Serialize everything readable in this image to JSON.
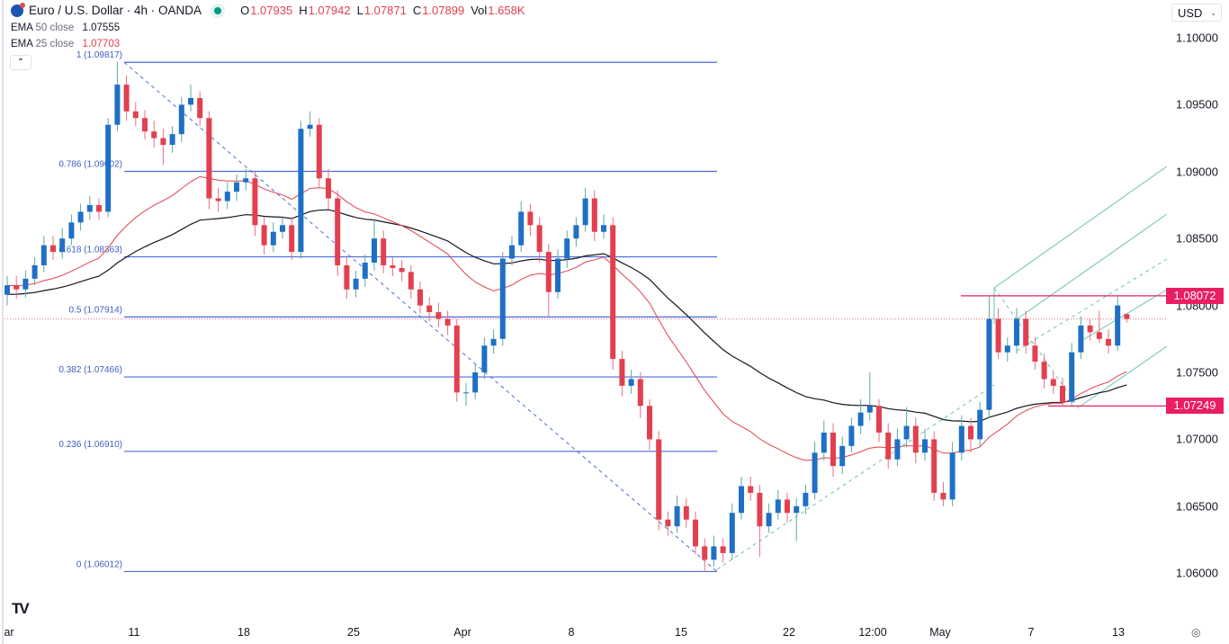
{
  "header": {
    "title": "Euro / U.S. Dollar · 4h · OANDA",
    "market_status_color": "#089981",
    "ohlc": {
      "o_label": "O",
      "o": "1.07935",
      "h_label": "H",
      "h": "1.07942",
      "l_label": "L",
      "l": "1.07871",
      "c_label": "C",
      "c": "1.07899",
      "vol_label": "Vol",
      "vol": "1.658K"
    }
  },
  "indicators": [
    {
      "name": "EMA",
      "params": "50 close",
      "value": "1.07555",
      "color": "#131722",
      "period": 50
    },
    {
      "name": "EMA",
      "params": "25 close",
      "value": "1.07703",
      "color": "#e2404f",
      "period": 25
    }
  ],
  "currency_selector": "USD",
  "colors": {
    "up": "#1f6fc5",
    "down": "#e2404f",
    "up_wick": "#5aa9a5",
    "down_wick": "#e9707e",
    "fib": "#4a6cd4",
    "pitchfork": "#6cc3ad",
    "level": "#e91e63"
  },
  "chart_data": {
    "type": "candlestick",
    "title": "",
    "ylim": [
      1.0575,
      1.1015
    ],
    "grid": false,
    "y_ticks": [
      "1.10000",
      "1.09500",
      "1.09000",
      "1.08500",
      "1.08000",
      "1.07500",
      "1.07000",
      "1.06500",
      "1.06000"
    ],
    "x_ticks": [
      "ar",
      "11",
      "18",
      "25",
      "Apr",
      "8",
      "15",
      "22",
      "12:00",
      "May",
      "7",
      "13"
    ],
    "current_price": 1.07899,
    "ohlc": [
      [
        1.0808,
        1.0822,
        1.08,
        1.0815
      ],
      [
        1.0815,
        1.0822,
        1.0805,
        1.0812
      ],
      [
        1.0812,
        1.0826,
        1.0806,
        1.082
      ],
      [
        1.082,
        1.0836,
        1.0815,
        1.083
      ],
      [
        1.083,
        1.0852,
        1.0825,
        1.0845
      ],
      [
        1.0845,
        1.0852,
        1.0834,
        1.084
      ],
      [
        1.084,
        1.0858,
        1.0835,
        1.085
      ],
      [
        1.085,
        1.0868,
        1.0845,
        1.0862
      ],
      [
        1.0862,
        1.0876,
        1.0856,
        1.087
      ],
      [
        1.087,
        1.0882,
        1.0864,
        1.0875
      ],
      [
        1.0875,
        1.088,
        1.0864,
        1.087
      ],
      [
        1.087,
        1.094,
        1.0866,
        1.0935
      ],
      [
        1.0935,
        1.0982,
        1.093,
        1.0965
      ],
      [
        1.0965,
        1.0972,
        1.0938,
        1.0945
      ],
      [
        1.0945,
        1.0952,
        1.0934,
        1.094
      ],
      [
        1.094,
        1.0946,
        1.0924,
        1.093
      ],
      [
        1.093,
        1.0938,
        1.0918,
        1.0925
      ],
      [
        1.0925,
        1.0932,
        1.0905,
        1.092
      ],
      [
        1.092,
        1.0934,
        1.0914,
        1.0928
      ],
      [
        1.0928,
        1.0956,
        1.0922,
        1.095
      ],
      [
        1.095,
        1.0965,
        1.0945,
        1.0955
      ],
      [
        1.0955,
        1.096,
        1.0934,
        1.094
      ],
      [
        1.094,
        1.0945,
        1.0872,
        1.088
      ],
      [
        1.088,
        1.0888,
        1.087,
        1.0878
      ],
      [
        1.0878,
        1.0892,
        1.0872,
        1.0885
      ],
      [
        1.0885,
        1.0898,
        1.0878,
        1.0892
      ],
      [
        1.0892,
        1.0902,
        1.0886,
        1.0895
      ],
      [
        1.0895,
        1.09,
        1.0852,
        1.086
      ],
      [
        1.086,
        1.0866,
        1.0838,
        1.0845
      ],
      [
        1.0845,
        1.0862,
        1.084,
        1.0855
      ],
      [
        1.0855,
        1.0866,
        1.085,
        1.086
      ],
      [
        1.086,
        1.0866,
        1.0834,
        1.084
      ],
      [
        1.084,
        1.0938,
        1.0835,
        1.0932
      ],
      [
        1.0932,
        1.0945,
        1.0926,
        1.0935
      ],
      [
        1.0935,
        1.094,
        1.0888,
        1.0895
      ],
      [
        1.0895,
        1.0902,
        1.0872,
        1.088
      ],
      [
        1.088,
        1.0886,
        1.0822,
        1.083
      ],
      [
        1.083,
        1.0836,
        1.0805,
        1.0812
      ],
      [
        1.0812,
        1.0826,
        1.0806,
        1.082
      ],
      [
        1.082,
        1.0838,
        1.0814,
        1.0832
      ],
      [
        1.0832,
        1.0865,
        1.0826,
        1.085
      ],
      [
        1.085,
        1.0856,
        1.0824,
        1.083
      ],
      [
        1.083,
        1.0836,
        1.0822,
        1.0828
      ],
      [
        1.0828,
        1.0834,
        1.0818,
        1.0825
      ],
      [
        1.0825,
        1.083,
        1.0805,
        1.0812
      ],
      [
        1.0812,
        1.0818,
        1.0794,
        1.08
      ],
      [
        1.08,
        1.0806,
        1.0788,
        1.0795
      ],
      [
        1.0795,
        1.0802,
        1.0784,
        1.079
      ],
      [
        1.079,
        1.0796,
        1.0778,
        1.0785
      ],
      [
        1.0785,
        1.079,
        1.0728,
        1.0735
      ],
      [
        1.0735,
        1.0742,
        1.0725,
        1.0735
      ],
      [
        1.0735,
        1.0756,
        1.073,
        1.075
      ],
      [
        1.075,
        1.0776,
        1.0745,
        1.077
      ],
      [
        1.077,
        1.0782,
        1.0764,
        1.0775
      ],
      [
        1.0775,
        1.084,
        1.077,
        1.0835
      ],
      [
        1.0835,
        1.0852,
        1.083,
        1.0845
      ],
      [
        1.0845,
        1.0878,
        1.084,
        1.087
      ],
      [
        1.087,
        1.0876,
        1.0852,
        1.086
      ],
      [
        1.086,
        1.0866,
        1.0832,
        1.084
      ],
      [
        1.084,
        1.0846,
        1.0792,
        1.081
      ],
      [
        1.081,
        1.0842,
        1.0805,
        1.0835
      ],
      [
        1.0835,
        1.0856,
        1.0828,
        1.085
      ],
      [
        1.085,
        1.0866,
        1.0844,
        1.086
      ],
      [
        1.086,
        1.0888,
        1.0855,
        1.088
      ],
      [
        1.088,
        1.0886,
        1.0848,
        1.0855
      ],
      [
        1.0855,
        1.0868,
        1.085,
        1.086
      ],
      [
        1.086,
        1.0866,
        1.0752,
        1.076
      ],
      [
        1.076,
        1.0766,
        1.0732,
        1.074
      ],
      [
        1.074,
        1.0752,
        1.0734,
        1.0745
      ],
      [
        1.0745,
        1.075,
        1.0716,
        1.0725
      ],
      [
        1.0725,
        1.073,
        1.0692,
        1.07
      ],
      [
        1.07,
        1.0706,
        1.0632,
        1.064
      ],
      [
        1.064,
        1.0646,
        1.0628,
        1.0635
      ],
      [
        1.0635,
        1.0658,
        1.063,
        1.065
      ],
      [
        1.065,
        1.0656,
        1.0634,
        1.064
      ],
      [
        1.064,
        1.0646,
        1.0614,
        1.062
      ],
      [
        1.062,
        1.0626,
        1.0601,
        1.061
      ],
      [
        1.061,
        1.0628,
        1.0605,
        1.062
      ],
      [
        1.062,
        1.0626,
        1.0608,
        1.0615
      ],
      [
        1.0615,
        1.0652,
        1.061,
        1.0645
      ],
      [
        1.0645,
        1.0672,
        1.064,
        1.0665
      ],
      [
        1.0665,
        1.0672,
        1.0654,
        1.066
      ],
      [
        1.066,
        1.0666,
        1.0612,
        1.0635
      ],
      [
        1.0635,
        1.0652,
        1.063,
        1.0645
      ],
      [
        1.0645,
        1.0662,
        1.064,
        1.0655
      ],
      [
        1.0655,
        1.066,
        1.0638,
        1.0645
      ],
      [
        1.0645,
        1.0656,
        1.0624,
        1.065
      ],
      [
        1.065,
        1.0666,
        1.0644,
        1.066
      ],
      [
        1.066,
        1.0698,
        1.0655,
        1.069
      ],
      [
        1.069,
        1.0714,
        1.0684,
        1.0705
      ],
      [
        1.0705,
        1.0712,
        1.0672,
        1.068
      ],
      [
        1.068,
        1.0702,
        1.0674,
        1.0695
      ],
      [
        1.0695,
        1.0716,
        1.069,
        1.071
      ],
      [
        1.071,
        1.073,
        1.0704,
        1.072
      ],
      [
        1.072,
        1.075,
        1.0714,
        1.0725
      ],
      [
        1.0725,
        1.073,
        1.0698,
        1.0705
      ],
      [
        1.0705,
        1.0712,
        1.0678,
        1.0685
      ],
      [
        1.0685,
        1.0708,
        1.068,
        1.07
      ],
      [
        1.07,
        1.0724,
        1.0694,
        1.071
      ],
      [
        1.071,
        1.0716,
        1.0682,
        1.069
      ],
      [
        1.069,
        1.0708,
        1.0684,
        1.07
      ],
      [
        1.07,
        1.0706,
        1.0654,
        1.066
      ],
      [
        1.066,
        1.0668,
        1.065,
        1.0655
      ],
      [
        1.0655,
        1.0698,
        1.065,
        1.069
      ],
      [
        1.069,
        1.0718,
        1.0684,
        1.071
      ],
      [
        1.071,
        1.0716,
        1.069,
        1.07
      ],
      [
        1.07,
        1.0728,
        1.0694,
        1.0722
      ],
      [
        1.0722,
        1.0807,
        1.0716,
        1.079
      ],
      [
        1.079,
        1.0798,
        1.076,
        1.0765
      ],
      [
        1.0765,
        1.0776,
        1.0758,
        1.077
      ],
      [
        1.077,
        1.0798,
        1.0764,
        1.079
      ],
      [
        1.079,
        1.0796,
        1.0764,
        1.077
      ],
      [
        1.077,
        1.0776,
        1.0752,
        1.0758
      ],
      [
        1.0758,
        1.0764,
        1.0738,
        1.0745
      ],
      [
        1.0745,
        1.075,
        1.0734,
        1.074
      ],
      [
        1.074,
        1.0746,
        1.0725,
        1.0728
      ],
      [
        1.0728,
        1.0772,
        1.0724,
        1.0765
      ],
      [
        1.0765,
        1.0792,
        1.076,
        1.0785
      ],
      [
        1.0785,
        1.079,
        1.0774,
        1.078
      ],
      [
        1.078,
        1.0796,
        1.0772,
        1.0775
      ],
      [
        1.0775,
        1.0782,
        1.0764,
        1.077
      ],
      [
        1.077,
        1.0807,
        1.0766,
        1.08
      ],
      [
        1.07935,
        1.07942,
        1.07871,
        1.07899
      ]
    ],
    "fibonacci": {
      "from": 1.09817,
      "to": 1.06012,
      "levels": [
        {
          "ratio": "1",
          "price": "1.09817"
        },
        {
          "ratio": "0.786",
          "price": "1.09002"
        },
        {
          "ratio": "0.618",
          "price": "1.08363"
        },
        {
          "ratio": "0.5",
          "price": "1.07914"
        },
        {
          "ratio": "0.382",
          "price": "1.07466"
        },
        {
          "ratio": "0.236",
          "price": "1.06910"
        },
        {
          "ratio": "0",
          "price": "1.06012"
        }
      ]
    },
    "horizontal_levels": [
      {
        "price": "1.08072"
      },
      {
        "price": "1.07249"
      }
    ]
  }
}
